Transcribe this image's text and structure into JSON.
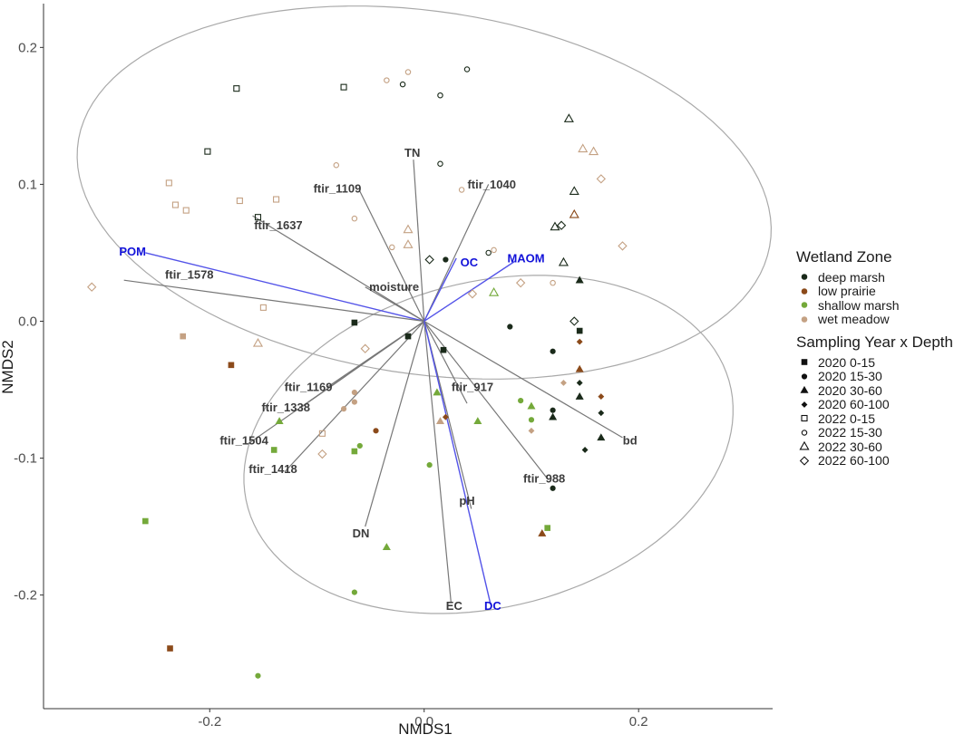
{
  "chart_data": {
    "type": "scatter",
    "xlabel": "NMDS1",
    "ylabel": "NMDS2",
    "xlim": [
      -0.355,
      0.325
    ],
    "ylim": [
      -0.283,
      0.232
    ],
    "x_ticks": [
      -0.2,
      0.0,
      0.2
    ],
    "x_tick_labels": [
      "-0.2",
      "0.0",
      "0.2"
    ],
    "y_ticks": [
      -0.2,
      -0.1,
      0.0,
      0.1,
      0.2
    ],
    "y_tick_labels": [
      "-0.2",
      "-0.1",
      "0.0",
      "0.1",
      "0.2"
    ],
    "grid": false,
    "legend_position": "right",
    "colors": {
      "deep marsh": "#1a2a1a",
      "low prairie": "#8b4a1a",
      "shallow marsh": "#74a93a",
      "wet meadow": "#c4a183",
      "vector_gray": "#777777",
      "vector_blue": "#5353e8",
      "label_gray": "#3c3c3c",
      "label_blue": "#1212d9",
      "ellipse": "#a9a9a9"
    },
    "ellipses": [
      {
        "year": "2022",
        "cx": 0.0,
        "cy": 0.094,
        "rx": 0.325,
        "ry": 0.133,
        "angle": -0.1
      },
      {
        "year": "2020",
        "cx": 0.06,
        "cy": -0.09,
        "rx": 0.23,
        "ry": 0.12,
        "angle": 0.15
      }
    ],
    "vectors": [
      {
        "name": "TN",
        "x": -0.01,
        "y": 0.118,
        "group": "variable",
        "label_x": -0.011,
        "label_y": 0.123
      },
      {
        "name": "ftir_1040",
        "x": 0.06,
        "y": 0.1,
        "group": "ftir",
        "label_x": 0.063,
        "label_y": 0.1
      },
      {
        "name": "ftir_1109",
        "x": -0.06,
        "y": 0.095,
        "group": "ftir",
        "label_x": -0.081,
        "label_y": 0.097
      },
      {
        "name": "ftir_1637",
        "x": -0.16,
        "y": 0.077,
        "group": "ftir",
        "label_x": -0.136,
        "label_y": 0.07
      },
      {
        "name": "POM",
        "x": -0.26,
        "y": 0.05,
        "group": "blue",
        "label_x": -0.272,
        "label_y": 0.051
      },
      {
        "name": "ftir_1578",
        "x": -0.28,
        "y": 0.03,
        "group": "ftir",
        "label_x": -0.219,
        "label_y": 0.034
      },
      {
        "name": "moisture",
        "x": -0.055,
        "y": 0.025,
        "group": "variable",
        "label_x": -0.028,
        "label_y": 0.025
      },
      {
        "name": "OC",
        "x": 0.03,
        "y": 0.046,
        "group": "blue",
        "label_x": 0.042,
        "label_y": 0.043
      },
      {
        "name": "MAOM",
        "x": 0.085,
        "y": 0.044,
        "group": "blue",
        "label_x": 0.095,
        "label_y": 0.046
      },
      {
        "name": "ftir_1169",
        "x": -0.09,
        "y": -0.048,
        "group": "ftir",
        "label_x": -0.108,
        "label_y": -0.048
      },
      {
        "name": "ftir_1338",
        "x": -0.115,
        "y": -0.063,
        "group": "ftir",
        "label_x": -0.129,
        "label_y": -0.063
      },
      {
        "name": "ftir_1504",
        "x": -0.165,
        "y": -0.09,
        "group": "ftir",
        "label_x": -0.168,
        "label_y": -0.087
      },
      {
        "name": "ftir_1418",
        "x": -0.13,
        "y": -0.11,
        "group": "ftir",
        "label_x": -0.141,
        "label_y": -0.108
      },
      {
        "name": "ftir_917",
        "x": 0.04,
        "y": -0.06,
        "group": "ftir",
        "label_x": 0.045,
        "label_y": -0.048
      },
      {
        "name": "bd",
        "x": 0.185,
        "y": -0.085,
        "group": "variable",
        "label_x": 0.192,
        "label_y": -0.087
      },
      {
        "name": "ftir_988",
        "x": 0.115,
        "y": -0.115,
        "group": "ftir",
        "label_x": 0.112,
        "label_y": -0.115
      },
      {
        "name": "pH",
        "x": 0.044,
        "y": -0.137,
        "group": "variable",
        "label_x": 0.04,
        "label_y": -0.131
      },
      {
        "name": "DN",
        "x": -0.055,
        "y": -0.15,
        "group": "variable",
        "label_x": -0.059,
        "label_y": -0.155
      },
      {
        "name": "EC",
        "x": 0.025,
        "y": -0.205,
        "group": "variable",
        "label_x": 0.028,
        "label_y": -0.208
      },
      {
        "name": "DC",
        "x": 0.062,
        "y": -0.207,
        "group": "blue",
        "label_x": 0.064,
        "label_y": -0.208
      }
    ],
    "legend": {
      "zone_title": "Wetland Zone",
      "zones": [
        "deep marsh",
        "low prairie",
        "shallow marsh",
        "wet meadow"
      ],
      "group_title": "Sampling Year x Depth",
      "groups": [
        "2020 0-15",
        "2020 15-30",
        "2020 30-60",
        "2020 60-100",
        "2022 0-15",
        "2022 15-30",
        "2022 30-60",
        "2022 60-100"
      ]
    },
    "points": [
      {
        "x": -0.175,
        "y": 0.17,
        "zone": "deep marsh",
        "group": "2022 0-15"
      },
      {
        "x": -0.075,
        "y": 0.171,
        "zone": "deep marsh",
        "group": "2022 0-15"
      },
      {
        "x": -0.202,
        "y": 0.124,
        "zone": "deep marsh",
        "group": "2022 0-15"
      },
      {
        "x": -0.155,
        "y": 0.076,
        "zone": "deep marsh",
        "group": "2022 0-15"
      },
      {
        "x": -0.238,
        "y": 0.101,
        "zone": "wet meadow",
        "group": "2022 0-15"
      },
      {
        "x": -0.232,
        "y": 0.085,
        "zone": "wet meadow",
        "group": "2022 0-15"
      },
      {
        "x": -0.222,
        "y": 0.081,
        "zone": "wet meadow",
        "group": "2022 0-15"
      },
      {
        "x": -0.172,
        "y": 0.088,
        "zone": "wet meadow",
        "group": "2022 0-15"
      },
      {
        "x": -0.138,
        "y": 0.089,
        "zone": "wet meadow",
        "group": "2022 0-15"
      },
      {
        "x": -0.15,
        "y": 0.01,
        "zone": "wet meadow",
        "group": "2022 0-15"
      },
      {
        "x": -0.095,
        "y": -0.082,
        "zone": "wet meadow",
        "group": "2022 0-15"
      },
      {
        "x": -0.02,
        "y": 0.173,
        "zone": "deep marsh",
        "group": "2022 15-30"
      },
      {
        "x": 0.04,
        "y": 0.184,
        "zone": "deep marsh",
        "group": "2022 15-30"
      },
      {
        "x": 0.015,
        "y": 0.165,
        "zone": "deep marsh",
        "group": "2022 15-30"
      },
      {
        "x": 0.015,
        "y": 0.115,
        "zone": "deep marsh",
        "group": "2022 15-30"
      },
      {
        "x": -0.035,
        "y": 0.176,
        "zone": "wet meadow",
        "group": "2022 15-30"
      },
      {
        "x": -0.082,
        "y": 0.114,
        "zone": "wet meadow",
        "group": "2022 15-30"
      },
      {
        "x": 0.035,
        "y": 0.096,
        "zone": "wet meadow",
        "group": "2022 15-30"
      },
      {
        "x": -0.065,
        "y": 0.075,
        "zone": "wet meadow",
        "group": "2022 15-30"
      },
      {
        "x": -0.03,
        "y": 0.054,
        "zone": "wet meadow",
        "group": "2022 15-30"
      },
      {
        "x": 0.065,
        "y": 0.052,
        "zone": "wet meadow",
        "group": "2022 15-30"
      },
      {
        "x": 0.12,
        "y": 0.028,
        "zone": "wet meadow",
        "group": "2022 15-30"
      },
      {
        "x": 0.06,
        "y": 0.05,
        "zone": "deep marsh",
        "group": "2022 15-30"
      },
      {
        "x": -0.015,
        "y": 0.182,
        "zone": "wet meadow",
        "group": "2022 15-30"
      },
      {
        "x": 0.135,
        "y": 0.148,
        "zone": "deep marsh",
        "group": "2022 30-60"
      },
      {
        "x": 0.148,
        "y": 0.126,
        "zone": "wet meadow",
        "group": "2022 30-60"
      },
      {
        "x": 0.158,
        "y": 0.124,
        "zone": "wet meadow",
        "group": "2022 30-60"
      },
      {
        "x": 0.14,
        "y": 0.095,
        "zone": "deep marsh",
        "group": "2022 30-60"
      },
      {
        "x": 0.122,
        "y": 0.069,
        "zone": "deep marsh",
        "group": "2022 30-60"
      },
      {
        "x": 0.14,
        "y": 0.078,
        "zone": "low prairie",
        "group": "2022 30-60"
      },
      {
        "x": 0.13,
        "y": 0.043,
        "zone": "deep marsh",
        "group": "2022 30-60"
      },
      {
        "x": -0.015,
        "y": 0.067,
        "zone": "wet meadow",
        "group": "2022 30-60"
      },
      {
        "x": -0.015,
        "y": 0.056,
        "zone": "wet meadow",
        "group": "2022 30-60"
      },
      {
        "x": 0.065,
        "y": 0.021,
        "zone": "shallow marsh",
        "group": "2022 30-60"
      },
      {
        "x": -0.155,
        "y": -0.016,
        "zone": "wet meadow",
        "group": "2022 30-60"
      },
      {
        "x": 0.165,
        "y": 0.104,
        "zone": "wet meadow",
        "group": "2022 60-100"
      },
      {
        "x": 0.128,
        "y": 0.07,
        "zone": "deep marsh",
        "group": "2022 60-100"
      },
      {
        "x": 0.185,
        "y": 0.055,
        "zone": "wet meadow",
        "group": "2022 60-100"
      },
      {
        "x": 0.005,
        "y": 0.045,
        "zone": "deep marsh",
        "group": "2022 60-100"
      },
      {
        "x": 0.09,
        "y": 0.028,
        "zone": "wet meadow",
        "group": "2022 60-100"
      },
      {
        "x": 0.045,
        "y": 0.02,
        "zone": "wet meadow",
        "group": "2022 60-100"
      },
      {
        "x": 0.14,
        "y": 0.0,
        "zone": "deep marsh",
        "group": "2022 60-100"
      },
      {
        "x": -0.055,
        "y": -0.02,
        "zone": "wet meadow",
        "group": "2022 60-100"
      },
      {
        "x": -0.095,
        "y": -0.097,
        "zone": "wet meadow",
        "group": "2022 60-100"
      },
      {
        "x": -0.31,
        "y": 0.025,
        "zone": "wet meadow",
        "group": "2022 60-100"
      },
      {
        "x": -0.065,
        "y": -0.001,
        "zone": "deep marsh",
        "group": "2020 0-15"
      },
      {
        "x": -0.015,
        "y": -0.011,
        "zone": "deep marsh",
        "group": "2020 0-15"
      },
      {
        "x": 0.018,
        "y": -0.021,
        "zone": "deep marsh",
        "group": "2020 0-15"
      },
      {
        "x": 0.145,
        "y": -0.007,
        "zone": "deep marsh",
        "group": "2020 0-15"
      },
      {
        "x": -0.225,
        "y": -0.011,
        "zone": "wet meadow",
        "group": "2020 0-15"
      },
      {
        "x": -0.18,
        "y": -0.032,
        "zone": "low prairie",
        "group": "2020 0-15"
      },
      {
        "x": -0.14,
        "y": -0.094,
        "zone": "shallow marsh",
        "group": "2020 0-15"
      },
      {
        "x": -0.065,
        "y": -0.095,
        "zone": "shallow marsh",
        "group": "2020 0-15"
      },
      {
        "x": 0.115,
        "y": -0.151,
        "zone": "shallow marsh",
        "group": "2020 0-15"
      },
      {
        "x": -0.26,
        "y": -0.146,
        "zone": "shallow marsh",
        "group": "2020 0-15"
      },
      {
        "x": -0.237,
        "y": -0.239,
        "zone": "low prairie",
        "group": "2020 0-15"
      },
      {
        "x": 0.02,
        "y": 0.045,
        "zone": "deep marsh",
        "group": "2020 15-30"
      },
      {
        "x": 0.08,
        "y": -0.004,
        "zone": "deep marsh",
        "group": "2020 15-30"
      },
      {
        "x": 0.12,
        "y": -0.022,
        "zone": "deep marsh",
        "group": "2020 15-30"
      },
      {
        "x": 0.12,
        "y": -0.065,
        "zone": "deep marsh",
        "group": "2020 15-30"
      },
      {
        "x": 0.12,
        "y": -0.122,
        "zone": "deep marsh",
        "group": "2020 15-30"
      },
      {
        "x": -0.065,
        "y": -0.052,
        "zone": "wet meadow",
        "group": "2020 15-30"
      },
      {
        "x": -0.065,
        "y": -0.059,
        "zone": "wet meadow",
        "group": "2020 15-30"
      },
      {
        "x": -0.075,
        "y": -0.064,
        "zone": "wet meadow",
        "group": "2020 15-30"
      },
      {
        "x": -0.045,
        "y": -0.08,
        "zone": "low prairie",
        "group": "2020 15-30"
      },
      {
        "x": -0.06,
        "y": -0.091,
        "zone": "shallow marsh",
        "group": "2020 15-30"
      },
      {
        "x": 0.005,
        "y": -0.105,
        "zone": "shallow marsh",
        "group": "2020 15-30"
      },
      {
        "x": 0.09,
        "y": -0.058,
        "zone": "shallow marsh",
        "group": "2020 15-30"
      },
      {
        "x": 0.1,
        "y": -0.072,
        "zone": "shallow marsh",
        "group": "2020 15-30"
      },
      {
        "x": -0.065,
        "y": -0.198,
        "zone": "shallow marsh",
        "group": "2020 15-30"
      },
      {
        "x": -0.155,
        "y": -0.259,
        "zone": "shallow marsh",
        "group": "2020 15-30"
      },
      {
        "x": 0.145,
        "y": 0.03,
        "zone": "deep marsh",
        "group": "2020 30-60"
      },
      {
        "x": 0.145,
        "y": -0.055,
        "zone": "deep marsh",
        "group": "2020 30-60"
      },
      {
        "x": 0.12,
        "y": -0.07,
        "zone": "deep marsh",
        "group": "2020 30-60"
      },
      {
        "x": 0.165,
        "y": -0.085,
        "zone": "deep marsh",
        "group": "2020 30-60"
      },
      {
        "x": 0.145,
        "y": -0.035,
        "zone": "low prairie",
        "group": "2020 30-60"
      },
      {
        "x": 0.012,
        "y": -0.052,
        "zone": "shallow marsh",
        "group": "2020 30-60"
      },
      {
        "x": -0.135,
        "y": -0.073,
        "zone": "shallow marsh",
        "group": "2020 30-60"
      },
      {
        "x": 0.1,
        "y": -0.062,
        "zone": "shallow marsh",
        "group": "2020 30-60"
      },
      {
        "x": 0.05,
        "y": -0.073,
        "zone": "shallow marsh",
        "group": "2020 30-60"
      },
      {
        "x": 0.015,
        "y": -0.073,
        "zone": "wet meadow",
        "group": "2020 30-60"
      },
      {
        "x": -0.035,
        "y": -0.165,
        "zone": "shallow marsh",
        "group": "2020 30-60"
      },
      {
        "x": 0.11,
        "y": -0.155,
        "zone": "low prairie",
        "group": "2020 30-60"
      },
      {
        "x": 0.145,
        "y": -0.015,
        "zone": "low prairie",
        "group": "2020 60-100"
      },
      {
        "x": 0.145,
        "y": -0.045,
        "zone": "deep marsh",
        "group": "2020 60-100"
      },
      {
        "x": 0.165,
        "y": -0.055,
        "zone": "low prairie",
        "group": "2020 60-100"
      },
      {
        "x": 0.165,
        "y": -0.067,
        "zone": "deep marsh",
        "group": "2020 60-100"
      },
      {
        "x": 0.15,
        "y": -0.094,
        "zone": "deep marsh",
        "group": "2020 60-100"
      },
      {
        "x": 0.13,
        "y": -0.045,
        "zone": "wet meadow",
        "group": "2020 60-100"
      },
      {
        "x": 0.02,
        "y": -0.07,
        "zone": "low prairie",
        "group": "2020 60-100"
      },
      {
        "x": 0.1,
        "y": -0.08,
        "zone": "wet meadow",
        "group": "2020 60-100"
      }
    ]
  }
}
